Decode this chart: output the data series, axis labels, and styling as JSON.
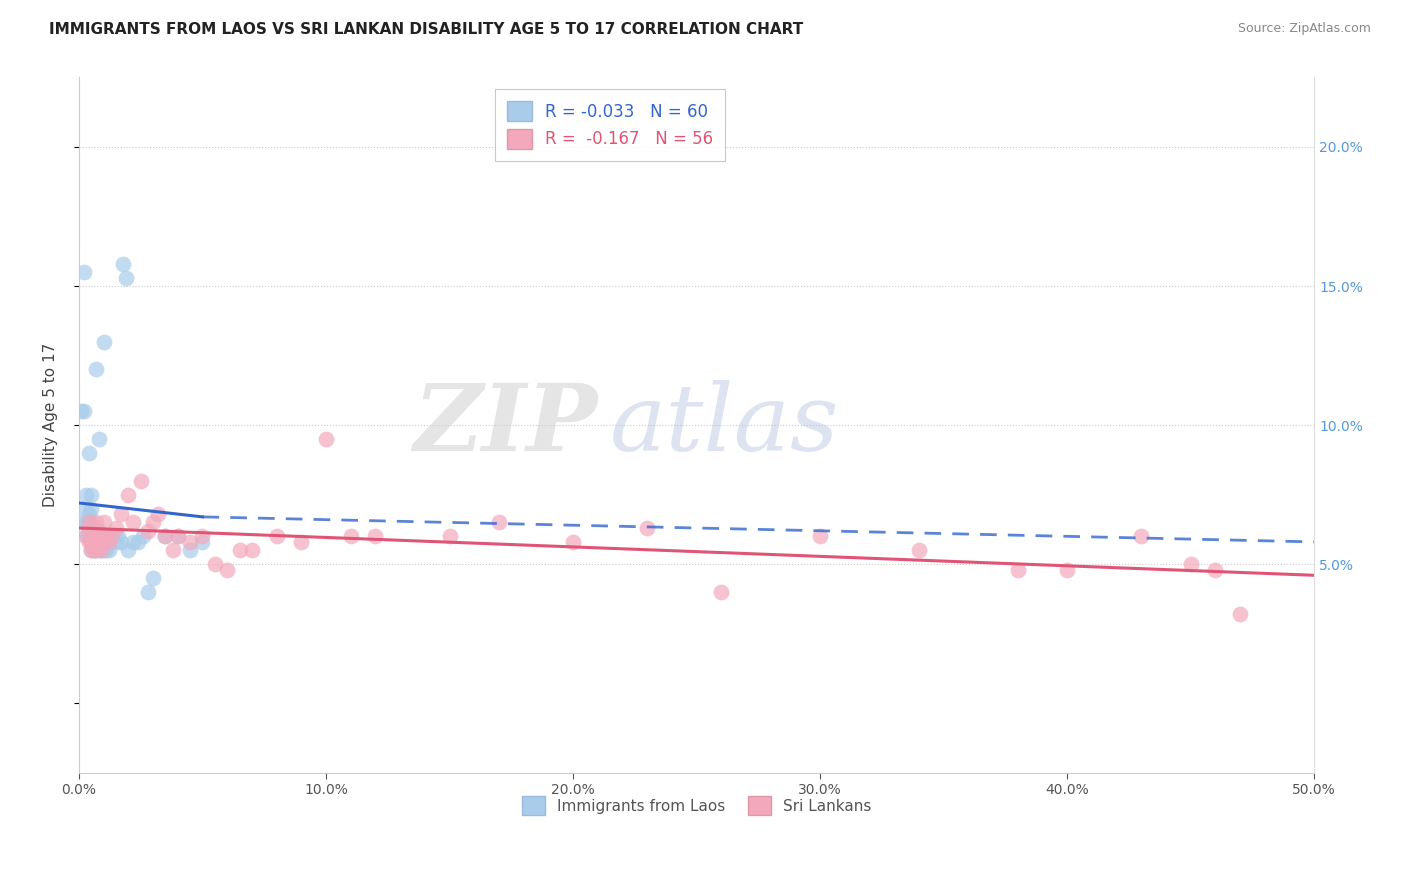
{
  "title": "IMMIGRANTS FROM LAOS VS SRI LANKAN DISABILITY AGE 5 TO 17 CORRELATION CHART",
  "source": "Source: ZipAtlas.com",
  "ylabel": "Disability Age 5 to 17",
  "xlim": [
    0.0,
    0.5
  ],
  "ylim": [
    -0.025,
    0.225
  ],
  "r_laos": -0.033,
  "n_laos": 60,
  "r_srilanka": -0.167,
  "n_srilanka": 56,
  "color_laos": "#A8CCEA",
  "color_srilanka": "#F4A8BC",
  "color_laos_line": "#3366CC",
  "color_srilanka_line": "#E05575",
  "legend_label_laos": "Immigrants from Laos",
  "legend_label_srilanka": "Sri Lankans",
  "watermark_zip": "ZIP",
  "watermark_atlas": "atlas",
  "blue_scatter_x": [
    0.001,
    0.001,
    0.002,
    0.002,
    0.003,
    0.003,
    0.003,
    0.003,
    0.004,
    0.004,
    0.004,
    0.004,
    0.004,
    0.005,
    0.005,
    0.005,
    0.005,
    0.005,
    0.005,
    0.005,
    0.006,
    0.006,
    0.006,
    0.006,
    0.007,
    0.007,
    0.007,
    0.007,
    0.007,
    0.008,
    0.008,
    0.008,
    0.008,
    0.009,
    0.009,
    0.009,
    0.01,
    0.01,
    0.01,
    0.011,
    0.011,
    0.012,
    0.012,
    0.013,
    0.014,
    0.015,
    0.016,
    0.017,
    0.018,
    0.019,
    0.02,
    0.022,
    0.024,
    0.026,
    0.028,
    0.03,
    0.035,
    0.04,
    0.045,
    0.05
  ],
  "blue_scatter_y": [
    0.065,
    0.105,
    0.105,
    0.155,
    0.06,
    0.065,
    0.07,
    0.075,
    0.06,
    0.062,
    0.065,
    0.068,
    0.09,
    0.055,
    0.058,
    0.06,
    0.062,
    0.065,
    0.07,
    0.075,
    0.055,
    0.058,
    0.06,
    0.062,
    0.055,
    0.058,
    0.06,
    0.063,
    0.12,
    0.055,
    0.058,
    0.06,
    0.095,
    0.055,
    0.058,
    0.06,
    0.055,
    0.058,
    0.13,
    0.055,
    0.058,
    0.055,
    0.058,
    0.06,
    0.06,
    0.058,
    0.06,
    0.058,
    0.158,
    0.153,
    0.055,
    0.058,
    0.058,
    0.06,
    0.04,
    0.045,
    0.06,
    0.06,
    0.055,
    0.058
  ],
  "pink_scatter_x": [
    0.003,
    0.004,
    0.004,
    0.005,
    0.005,
    0.005,
    0.006,
    0.006,
    0.006,
    0.007,
    0.007,
    0.007,
    0.008,
    0.008,
    0.009,
    0.009,
    0.01,
    0.01,
    0.011,
    0.012,
    0.013,
    0.015,
    0.017,
    0.02,
    0.022,
    0.025,
    0.028,
    0.03,
    0.032,
    0.035,
    0.038,
    0.04,
    0.045,
    0.05,
    0.055,
    0.06,
    0.065,
    0.07,
    0.08,
    0.09,
    0.1,
    0.11,
    0.12,
    0.15,
    0.17,
    0.2,
    0.23,
    0.26,
    0.3,
    0.34,
    0.38,
    0.4,
    0.43,
    0.45,
    0.46,
    0.47
  ],
  "pink_scatter_y": [
    0.06,
    0.058,
    0.065,
    0.055,
    0.058,
    0.063,
    0.055,
    0.058,
    0.062,
    0.055,
    0.06,
    0.065,
    0.058,
    0.062,
    0.055,
    0.06,
    0.058,
    0.065,
    0.06,
    0.058,
    0.06,
    0.063,
    0.068,
    0.075,
    0.065,
    0.08,
    0.062,
    0.065,
    0.068,
    0.06,
    0.055,
    0.06,
    0.058,
    0.06,
    0.05,
    0.048,
    0.055,
    0.055,
    0.06,
    0.058,
    0.095,
    0.06,
    0.06,
    0.06,
    0.065,
    0.058,
    0.063,
    0.04,
    0.06,
    0.055,
    0.048,
    0.048,
    0.06,
    0.05,
    0.048,
    0.032
  ],
  "blue_line_x0": 0.0,
  "blue_line_y0": 0.072,
  "blue_line_x_solid_end": 0.05,
  "blue_line_y_solid_end": 0.067,
  "blue_line_x_dash_end": 0.5,
  "blue_line_y_dash_end": 0.058,
  "pink_line_x0": 0.0,
  "pink_line_y0": 0.063,
  "pink_line_x_end": 0.5,
  "pink_line_y_end": 0.046
}
